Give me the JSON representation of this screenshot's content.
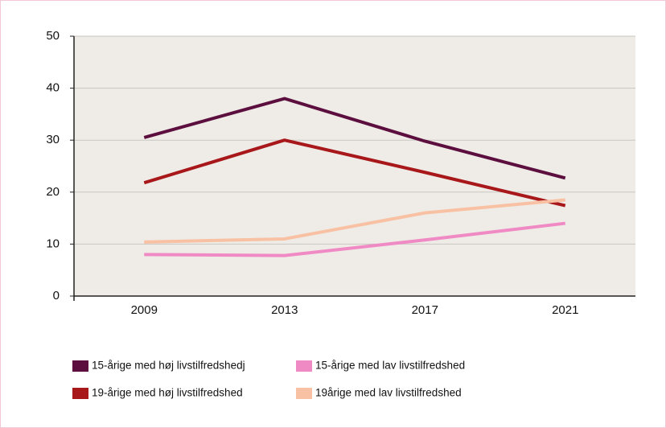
{
  "chart_data": {
    "type": "line",
    "categories": [
      "2009",
      "2013",
      "2017",
      "2021"
    ],
    "series": [
      {
        "name": "15-årige med høj livstilfredshedj",
        "color": "#5c0f3f",
        "values": [
          30.5,
          38,
          29.8,
          22.7
        ]
      },
      {
        "name": "19-årige med høj livstilfredshed",
        "color": "#a8171a",
        "values": [
          21.8,
          30,
          23.8,
          17.4
        ]
      },
      {
        "name": "15-årige med lav livstilfredshed",
        "color": "#f08ac4",
        "values": [
          8,
          7.8,
          10.8,
          14
        ]
      },
      {
        "name": "19årige med lav livstilfredshed",
        "color": "#f9c1a3",
        "values": [
          10.4,
          11,
          16,
          18.5
        ]
      }
    ],
    "ylim": [
      0,
      50
    ],
    "yticks": [
      0,
      10,
      20,
      30,
      40,
      50
    ],
    "grid": true
  }
}
